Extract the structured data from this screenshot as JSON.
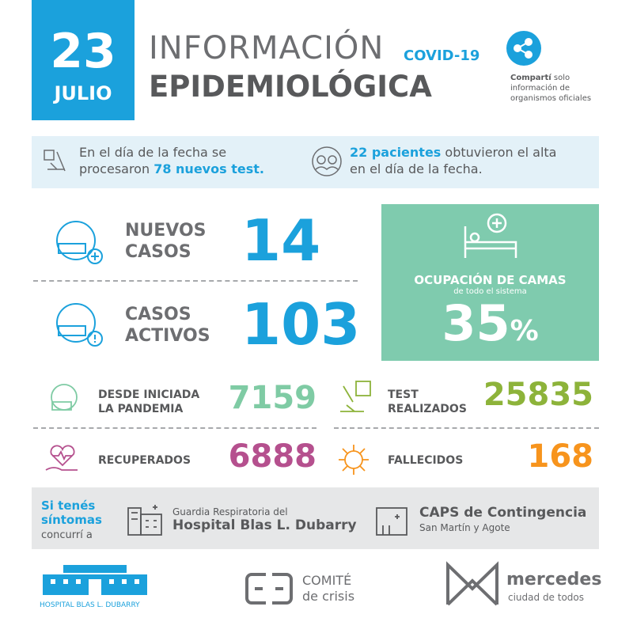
{
  "date": {
    "day": "23",
    "month": "JULIO"
  },
  "header": {
    "title_line1": "INFORMACIÓN",
    "tag": "COVID-19",
    "title_line2": "EPIDEMIOLÓGICA",
    "share_bold": "Compartí",
    "share_text_1": "solo",
    "share_text_2": "información de",
    "share_text_3": "organismos oficiales"
  },
  "info": {
    "tests_text_1": "En el día de la fecha se",
    "tests_text_2": "procesaron",
    "tests_highlight": "78 nuevos test.",
    "discharged_highlight": "22 pacientes",
    "discharged_text_1": "obtuvieron el alta",
    "discharged_text_2": "en el día de la fecha."
  },
  "new_cases": {
    "label_1": "NUEVOS",
    "label_2": "CASOS",
    "value": "14"
  },
  "active_cases": {
    "label_1": "CASOS",
    "label_2": "ACTIVOS",
    "value": "103"
  },
  "beds": {
    "label": "OCUPACIÓN DE CAMAS",
    "sublabel": "de todo el sistema",
    "value": "35",
    "unit": "%"
  },
  "since_start": {
    "label_1": "DESDE INICIADA",
    "label_2": "LA PANDEMIA",
    "value": "7159"
  },
  "tests_total": {
    "label_1": "TEST",
    "label_2": "REALIZADOS",
    "value": "25835"
  },
  "recovered": {
    "label": "RECUPERADOS",
    "value": "6888"
  },
  "deaths": {
    "label": "FALLECIDOS",
    "value": "168"
  },
  "symptoms": {
    "line_1": "Si tenés",
    "line_2": "síntomas",
    "line_3": "concurrí a",
    "hospital_small": "Guardia Respiratoria del",
    "hospital_name": "Hospital Blas L. Dubarry",
    "caps_name": "CAPS de Contingencia",
    "caps_address": "San Martín y Agote"
  },
  "footer": {
    "hospital_logo": "HOSPITAL BLAS L. DUBARRY",
    "comite_1": "COMITÉ",
    "comite_2": "de crisis",
    "city": "mercedes",
    "city_tag": "ciudad de todos"
  }
}
